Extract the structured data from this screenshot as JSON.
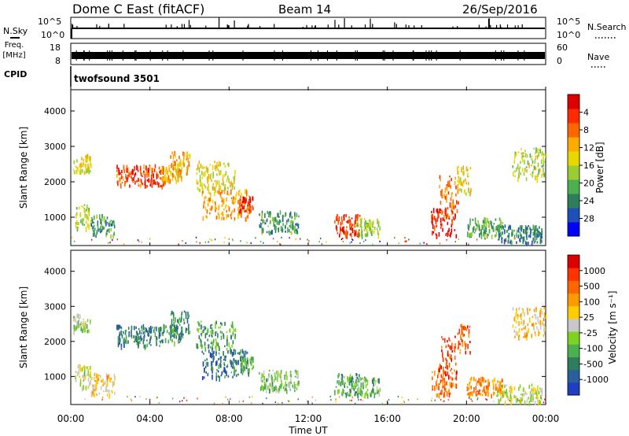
{
  "header": {
    "title": "Dome C East (fitACF)",
    "beam": "Beam 14",
    "date": "26/Sep/2016"
  },
  "left_labels": {
    "nsky": "N.Sky",
    "freq_line1": "Freq.",
    "freq_line2": "[MHz]",
    "cpid": "CPID"
  },
  "right_labels": {
    "nsearch": "N.Search",
    "nave": "Nave"
  },
  "nsky_panel": {
    "ticks_left": [
      "10^5",
      "10^0"
    ],
    "ticks_right": [
      "10^5",
      "10^0"
    ]
  },
  "freq_panel": {
    "ticks_left": [
      "18",
      "8"
    ],
    "ticks_right": [
      "60",
      "0"
    ]
  },
  "cpid_text": "twofsound 3501",
  "time_axis": {
    "label": "Time UT",
    "ticks": [
      "00:00",
      "04:00",
      "08:00",
      "12:00",
      "16:00",
      "20:00",
      "00:00"
    ]
  },
  "chart_data": [
    {
      "type": "heatmap",
      "name": "Power",
      "ylabel": "Slant Range [km]",
      "xlabel": "Time UT",
      "xlim": [
        0,
        24
      ],
      "ylim": [
        200,
        4600
      ],
      "yticks": [
        "1000",
        "2000",
        "3000",
        "4000"
      ],
      "colorbar": {
        "label": "Power [dB]",
        "ticks": [
          "4",
          "8",
          "12",
          "16",
          "20",
          "24",
          "28"
        ],
        "range": [
          0,
          32
        ],
        "colors": [
          "#0000ff",
          "#1f4fb8",
          "#2e7d5c",
          "#4caf50",
          "#9acd32",
          "#e8d800",
          "#ffaa00",
          "#ff6600",
          "#ff2a00",
          "#dd0000"
        ]
      },
      "clusters": [
        {
          "t": [
            0.1,
            1.0
          ],
          "r": [
            2300,
            2800
          ],
          "level": 0.55
        },
        {
          "t": [
            0.2,
            1.0
          ],
          "r": [
            700,
            1400
          ],
          "level": 0.45
        },
        {
          "t": [
            1.0,
            2.2
          ],
          "r": [
            500,
            1100
          ],
          "level": 0.3
        },
        {
          "t": [
            2.3,
            4.7
          ],
          "r": [
            1900,
            2500
          ],
          "level": 0.82
        },
        {
          "t": [
            4.5,
            5.6
          ],
          "r": [
            2000,
            2500
          ],
          "level": 0.6
        },
        {
          "t": [
            5.0,
            6.0
          ],
          "r": [
            2200,
            2900
          ],
          "level": 0.65
        },
        {
          "t": [
            6.3,
            8.3
          ],
          "r": [
            1800,
            2600
          ],
          "level": 0.55
        },
        {
          "t": [
            6.6,
            9.0
          ],
          "r": [
            1000,
            1800
          ],
          "level": 0.65
        },
        {
          "t": [
            8.5,
            9.2
          ],
          "r": [
            1200,
            1600
          ],
          "level": 0.9
        },
        {
          "t": [
            9.5,
            11.5
          ],
          "r": [
            600,
            1200
          ],
          "level": 0.3
        },
        {
          "t": [
            13.3,
            14.6
          ],
          "r": [
            500,
            1100
          ],
          "level": 0.85
        },
        {
          "t": [
            14.4,
            15.6
          ],
          "r": [
            500,
            1000
          ],
          "level": 0.45
        },
        {
          "t": [
            18.2,
            19.5
          ],
          "r": [
            500,
            1300
          ],
          "level": 0.92
        },
        {
          "t": [
            18.6,
            19.6
          ],
          "r": [
            1000,
            2200
          ],
          "level": 0.75
        },
        {
          "t": [
            19.5,
            20.2
          ],
          "r": [
            1700,
            2500
          ],
          "level": 0.55
        },
        {
          "t": [
            20.0,
            21.8
          ],
          "r": [
            500,
            1000
          ],
          "level": 0.35
        },
        {
          "t": [
            21.5,
            23.8
          ],
          "r": [
            300,
            800
          ],
          "level": 0.25
        },
        {
          "t": [
            22.3,
            24.0
          ],
          "r": [
            2100,
            3000
          ],
          "level": 0.5
        }
      ]
    },
    {
      "type": "heatmap",
      "name": "Velocity",
      "ylabel": "Slant Range [km]",
      "xlabel": "Time UT",
      "xlim": [
        0,
        24
      ],
      "ylim": [
        200,
        4600
      ],
      "yticks": [
        "1000",
        "2000",
        "3000",
        "4000"
      ],
      "colorbar": {
        "label": "Velocity [m s⁻¹]",
        "ticks": [
          "1000",
          "500",
          "100",
          "25",
          "-25",
          "-100",
          "-500",
          "-1000"
        ],
        "range": [
          -1000,
          1000
        ],
        "colors": [
          "#1f3fc0",
          "#2a5f9e",
          "#2e7d5c",
          "#4caf50",
          "#7ed321",
          "#c8c8c8",
          "#ffcc00",
          "#ff9900",
          "#ff6600",
          "#ff3300",
          "#dd0000"
        ]
      },
      "clusters": [
        {
          "t": [
            0.1,
            1.0
          ],
          "r": [
            2300,
            2800
          ],
          "level": 0.45
        },
        {
          "t": [
            0.2,
            1.0
          ],
          "r": [
            700,
            1400
          ],
          "level": 0.5
        },
        {
          "t": [
            1.0,
            2.2
          ],
          "r": [
            500,
            1100
          ],
          "level": 0.6
        },
        {
          "t": [
            2.3,
            4.7
          ],
          "r": [
            1900,
            2500
          ],
          "level": 0.22
        },
        {
          "t": [
            4.5,
            5.6
          ],
          "r": [
            2000,
            2500
          ],
          "level": 0.25
        },
        {
          "t": [
            5.0,
            6.0
          ],
          "r": [
            2200,
            2900
          ],
          "level": 0.25
        },
        {
          "t": [
            6.3,
            8.3
          ],
          "r": [
            1800,
            2600
          ],
          "level": 0.3
        },
        {
          "t": [
            6.6,
            9.0
          ],
          "r": [
            1000,
            1800
          ],
          "level": 0.18
        },
        {
          "t": [
            8.5,
            9.2
          ],
          "r": [
            1200,
            1600
          ],
          "level": 0.3
        },
        {
          "t": [
            9.5,
            11.5
          ],
          "r": [
            600,
            1200
          ],
          "level": 0.4
        },
        {
          "t": [
            13.3,
            14.6
          ],
          "r": [
            500,
            1100
          ],
          "level": 0.3
        },
        {
          "t": [
            14.4,
            15.6
          ],
          "r": [
            500,
            1000
          ],
          "level": 0.35
        },
        {
          "t": [
            18.2,
            19.5
          ],
          "r": [
            500,
            1300
          ],
          "level": 0.78
        },
        {
          "t": [
            18.6,
            19.6
          ],
          "r": [
            1000,
            2200
          ],
          "level": 0.85
        },
        {
          "t": [
            19.5,
            20.2
          ],
          "r": [
            1700,
            2500
          ],
          "level": 0.82
        },
        {
          "t": [
            20.0,
            21.8
          ],
          "r": [
            500,
            1000
          ],
          "level": 0.72
        },
        {
          "t": [
            21.5,
            23.8
          ],
          "r": [
            300,
            800
          ],
          "level": 0.5
        },
        {
          "t": [
            22.3,
            24.0
          ],
          "r": [
            2100,
            3000
          ],
          "level": 0.6
        }
      ]
    }
  ]
}
